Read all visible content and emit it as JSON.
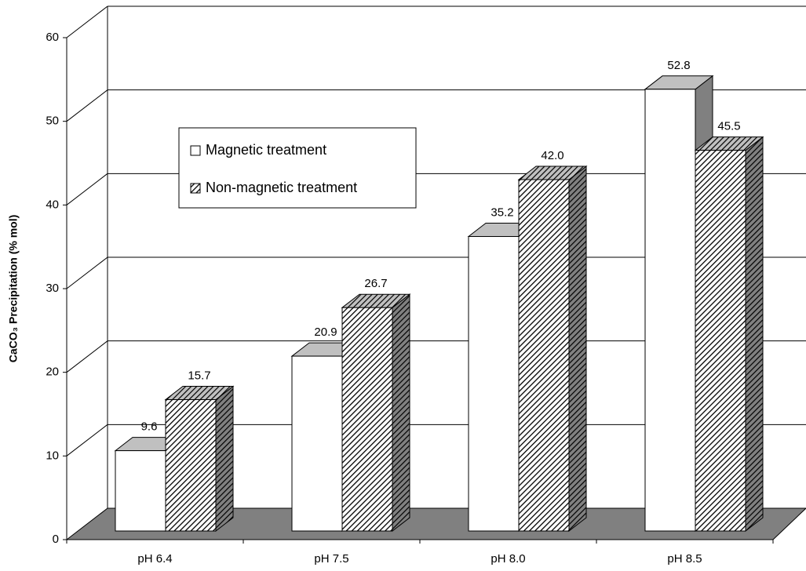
{
  "chart_data": {
    "type": "bar3d",
    "y_label": "CaCO₃ Precipitation (% mol)",
    "categories": [
      "pH 6.4",
      "pH 7.5",
      "pH 8.0",
      "pH 8.5"
    ],
    "series": [
      {
        "name": "Magnetic treatment",
        "color": "#ffffff",
        "values": [
          9.6,
          20.9,
          35.2,
          52.8
        ],
        "value_labels": [
          "9.6",
          "20.9",
          "35.2",
          "52.8"
        ]
      },
      {
        "name": "Non-magnetic treatment",
        "color": "hatched",
        "values": [
          15.7,
          26.7,
          42.0,
          45.5
        ],
        "value_labels": [
          "15.7",
          "26.7",
          "42.0",
          "45.5"
        ]
      }
    ],
    "ylim": [
      0,
      60
    ],
    "yticks": [
      0,
      10,
      20,
      30,
      40,
      50,
      60
    ],
    "grid": true,
    "legend": "upper left"
  }
}
